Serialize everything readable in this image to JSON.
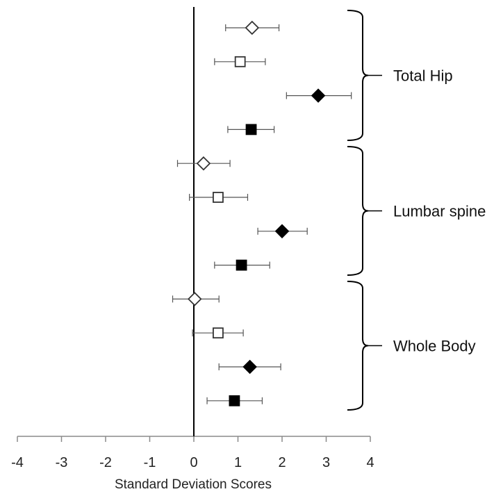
{
  "chart_data": {
    "type": "scatter",
    "subtype": "forest-plot",
    "title": "",
    "xlabel": "Standard Deviation Scores",
    "ylabel": "",
    "xlim": [
      -4,
      4
    ],
    "xticks": [
      -4,
      -3,
      -2,
      -1,
      0,
      1,
      2,
      3,
      4
    ],
    "xtick_labels": [
      "-4",
      "-3",
      "-2",
      "-1",
      "0",
      "1",
      "2",
      "3",
      "4"
    ],
    "reference_line_x": 0,
    "grid": false,
    "legend": "none",
    "marker_styles": [
      "open-diamond",
      "open-square",
      "filled-diamond",
      "filled-square"
    ],
    "groups": [
      {
        "label": "Total Hip",
        "points": [
          {
            "marker": "open-diamond",
            "value": 1.32,
            "lower": 0.72,
            "upper": 1.93
          },
          {
            "marker": "open-square",
            "value": 1.05,
            "lower": 0.47,
            "upper": 1.62
          },
          {
            "marker": "filled-diamond",
            "value": 2.82,
            "lower": 2.1,
            "upper": 3.57
          },
          {
            "marker": "filled-square",
            "value": 1.3,
            "lower": 0.77,
            "upper": 1.82
          }
        ]
      },
      {
        "label": "Lumbar spine",
        "points": [
          {
            "marker": "open-diamond",
            "value": 0.22,
            "lower": -0.37,
            "upper": 0.82
          },
          {
            "marker": "open-square",
            "value": 0.55,
            "lower": -0.1,
            "upper": 1.22
          },
          {
            "marker": "filled-diamond",
            "value": 2.0,
            "lower": 1.45,
            "upper": 2.57
          },
          {
            "marker": "filled-square",
            "value": 1.08,
            "lower": 0.47,
            "upper": 1.72
          }
        ]
      },
      {
        "label": "Whole Body",
        "points": [
          {
            "marker": "open-diamond",
            "value": 0.02,
            "lower": -0.48,
            "upper": 0.57
          },
          {
            "marker": "open-square",
            "value": 0.55,
            "lower": -0.03,
            "upper": 1.12
          },
          {
            "marker": "filled-diamond",
            "value": 1.27,
            "lower": 0.57,
            "upper": 1.97
          },
          {
            "marker": "filled-square",
            "value": 0.92,
            "lower": 0.3,
            "upper": 1.55
          }
        ]
      }
    ]
  }
}
